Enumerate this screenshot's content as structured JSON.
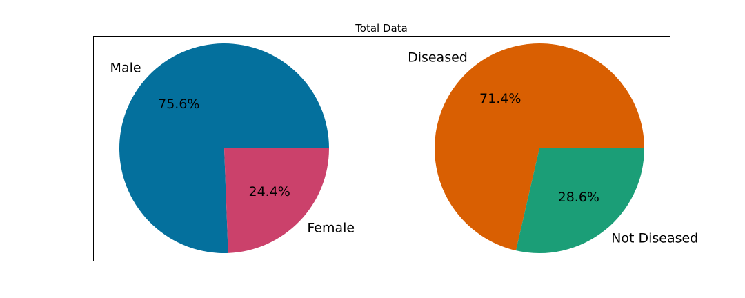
{
  "chart_data": {
    "type": "pie",
    "title": "Total Data",
    "frame": true,
    "pies": [
      {
        "slices": [
          {
            "label": "Male",
            "value": 75.6,
            "pct_label": "75.6%",
            "color": "#04709d"
          },
          {
            "label": "Female",
            "value": 24.4,
            "pct_label": "24.4%",
            "color": "#cb416b"
          }
        ]
      },
      {
        "slices": [
          {
            "label": "Diseased",
            "value": 71.4,
            "pct_label": "71.4%",
            "color": "#d95f02"
          },
          {
            "label": "Not Diseased",
            "value": 28.6,
            "pct_label": "28.6%",
            "color": "#1b9e77"
          }
        ]
      }
    ]
  }
}
